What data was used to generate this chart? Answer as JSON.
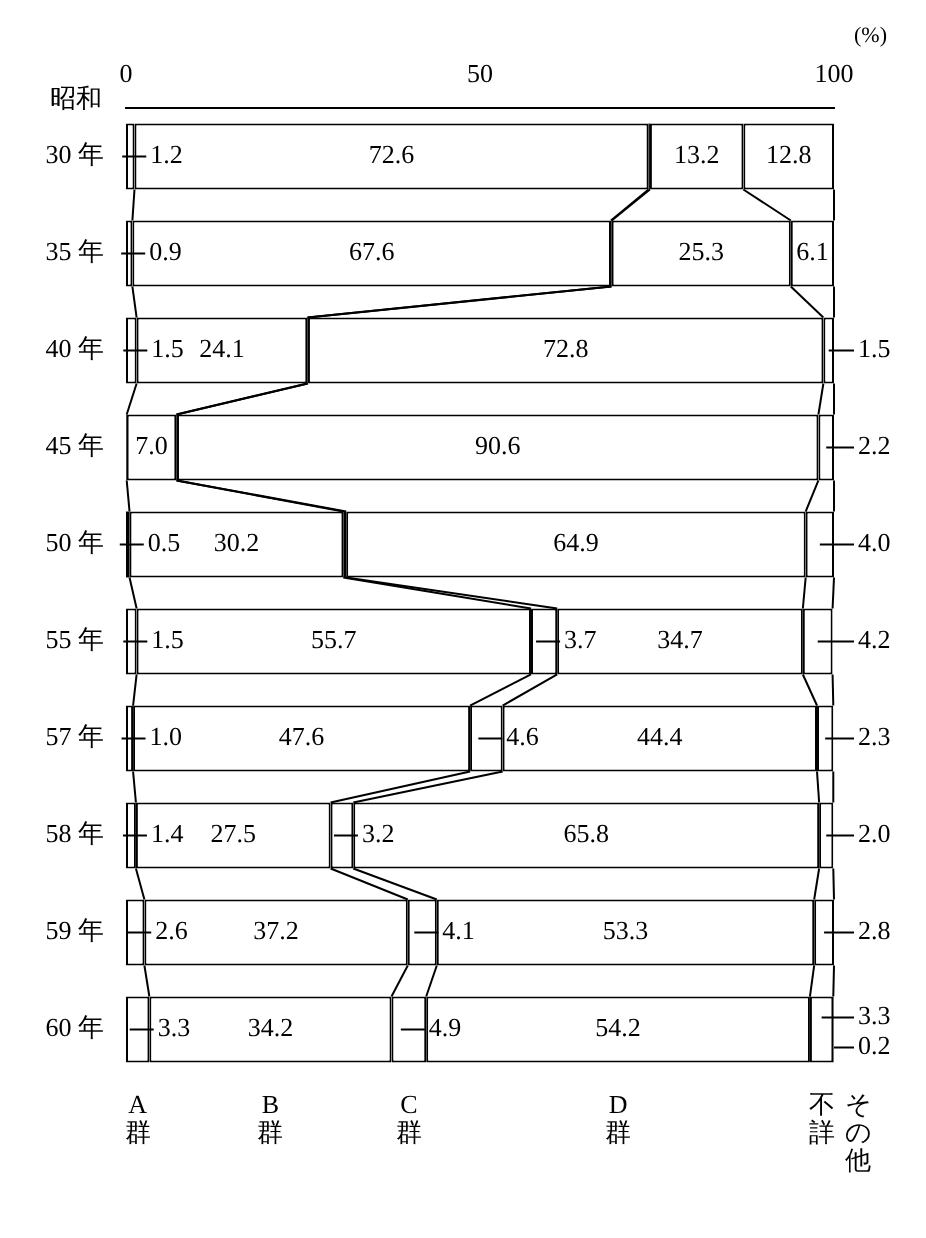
{
  "chart_data": {
    "type": "bar",
    "orientation": "horizontal",
    "stacked": true,
    "xlabel": "(%)",
    "ylabel": "昭和",
    "grid": false,
    "legend": false,
    "categories": [
      "30 年",
      "35 年",
      "40 年",
      "45 年",
      "50 年",
      "55 年",
      "57 年",
      "58 年",
      "59 年",
      "60 年"
    ],
    "xlim": [
      0,
      100
    ],
    "xticks": [
      0,
      50,
      100
    ],
    "series": [
      {
        "name": "A群",
        "color": "#ffffff",
        "colors": [
          null,
          null,
          null,
          "#000000",
          "#000000",
          null,
          null,
          null,
          null,
          null
        ],
        "values": [
          1.2,
          0.9,
          1.5,
          0.1,
          0.5,
          1.5,
          1.0,
          1.4,
          2.6,
          3.3
        ],
        "value_labels": [
          "1.2",
          "0.9",
          "1.5",
          null,
          "0.5",
          "1.5",
          "1.0",
          "1.4",
          "2.6",
          "3.3"
        ]
      },
      {
        "name": "B群",
        "color": "#ffffff",
        "values": [
          72.6,
          67.6,
          24.1,
          7.0,
          30.2,
          55.7,
          47.6,
          27.5,
          37.2,
          34.2
        ],
        "value_labels": [
          "72.6",
          "67.6",
          "24.1",
          "7.0",
          "30.2",
          "55.7",
          "47.6",
          "27.5",
          "37.2",
          "34.2"
        ]
      },
      {
        "name": "C群",
        "color": "#ffffff",
        "colors": [
          "#000000",
          "#000000",
          "#000000",
          "#000000",
          "#000000",
          null,
          null,
          null,
          null,
          null
        ],
        "values": [
          0.2,
          0.1,
          0.1,
          0.1,
          0.4,
          3.7,
          4.6,
          3.2,
          4.1,
          4.9
        ],
        "value_labels": [
          null,
          null,
          null,
          null,
          null,
          "3.7",
          "4.6",
          "3.2",
          "4.1",
          "4.9"
        ]
      },
      {
        "name": "D群",
        "color": "#ffffff",
        "values": [
          13.2,
          25.3,
          72.8,
          90.6,
          64.9,
          34.7,
          44.4,
          65.8,
          53.3,
          54.2
        ],
        "value_labels": [
          "13.2",
          "25.3",
          "72.8",
          "90.6",
          "64.9",
          "34.7",
          "44.4",
          "65.8",
          "53.3",
          "54.2"
        ]
      },
      {
        "name": "不詳",
        "color": "#ffffff",
        "values": [
          12.8,
          6.1,
          1.5,
          2.2,
          4.0,
          4.2,
          2.3,
          2.0,
          2.8,
          3.3
        ],
        "value_labels": [
          "12.8",
          "6.1",
          "1.5",
          "2.2",
          "4.0",
          "4.2",
          "2.3",
          "2.0",
          "2.8",
          "3.3"
        ]
      },
      {
        "name": "その他",
        "color": "#000000",
        "values": [
          null,
          null,
          null,
          null,
          null,
          null,
          null,
          null,
          null,
          0.2
        ],
        "value_labels": [
          null,
          null,
          null,
          null,
          null,
          null,
          null,
          null,
          null,
          "0.2"
        ]
      }
    ]
  }
}
